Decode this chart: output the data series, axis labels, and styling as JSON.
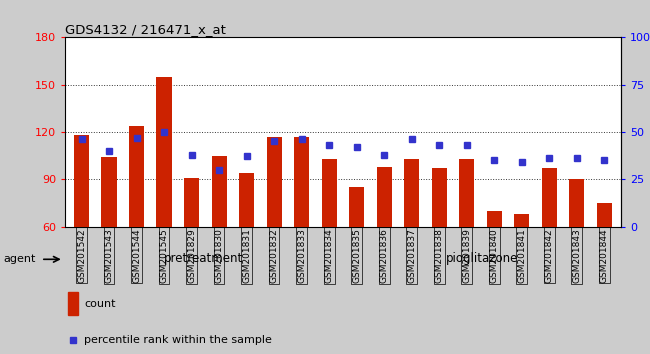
{
  "title": "GDS4132 / 216471_x_at",
  "samples": [
    "GSM201542",
    "GSM201543",
    "GSM201544",
    "GSM201545",
    "GSM201829",
    "GSM201830",
    "GSM201831",
    "GSM201832",
    "GSM201833",
    "GSM201834",
    "GSM201835",
    "GSM201836",
    "GSM201837",
    "GSM201838",
    "GSM201839",
    "GSM201840",
    "GSM201841",
    "GSM201842",
    "GSM201843",
    "GSM201844"
  ],
  "counts": [
    118,
    104,
    124,
    155,
    91,
    105,
    94,
    117,
    117,
    103,
    85,
    98,
    103,
    97,
    103,
    70,
    68,
    97,
    90,
    75
  ],
  "percentile_ranks": [
    46,
    40,
    47,
    50,
    38,
    30,
    37,
    45,
    46,
    43,
    42,
    38,
    46,
    43,
    43,
    35,
    34,
    36,
    36,
    35
  ],
  "pretreatment_count": 10,
  "pioglitazone_count": 10,
  "bar_color": "#cc2200",
  "dot_color": "#3333cc",
  "ylim_left": [
    60,
    180
  ],
  "ylim_right": [
    0,
    100
  ],
  "yticks_left": [
    60,
    90,
    120,
    150,
    180
  ],
  "yticks_right": [
    0,
    25,
    50,
    75,
    100
  ],
  "pretreatment_label": "pretreatment",
  "pioglitazone_label": "pioglitazone",
  "agent_label": "agent",
  "legend_count_label": "count",
  "legend_pct_label": "percentile rank within the sample",
  "pretreatment_color": "#bbffbb",
  "pioglitazone_color": "#55cc33",
  "bar_width": 0.55,
  "background_color": "#cccccc",
  "plot_bg_color": "#ffffff",
  "tick_bg_color": "#cccccc",
  "grid_color": "#333333"
}
